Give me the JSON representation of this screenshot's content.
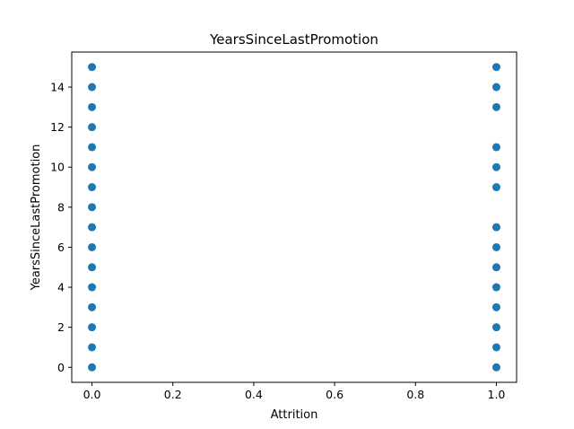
{
  "chart_data": {
    "type": "scatter",
    "title": "YearsSinceLastPromotion",
    "xlabel": "Attrition",
    "ylabel": "YearsSinceLastPromotion",
    "xlim": [
      -0.05,
      1.05
    ],
    "ylim": [
      -0.75,
      15.75
    ],
    "xticks": [
      0.0,
      0.2,
      0.4,
      0.6,
      0.8,
      1.0
    ],
    "xtick_labels": [
      "0.0",
      "0.2",
      "0.4",
      "0.6",
      "0.8",
      "1.0"
    ],
    "yticks": [
      0,
      2,
      4,
      6,
      8,
      10,
      12,
      14
    ],
    "ytick_labels": [
      "0",
      "2",
      "4",
      "6",
      "8",
      "10",
      "12",
      "14"
    ],
    "grid": false,
    "marker_color": "#1f77b4",
    "points": [
      {
        "x": 0,
        "y": 0
      },
      {
        "x": 0,
        "y": 1
      },
      {
        "x": 0,
        "y": 2
      },
      {
        "x": 0,
        "y": 3
      },
      {
        "x": 0,
        "y": 4
      },
      {
        "x": 0,
        "y": 5
      },
      {
        "x": 0,
        "y": 6
      },
      {
        "x": 0,
        "y": 7
      },
      {
        "x": 0,
        "y": 8
      },
      {
        "x": 0,
        "y": 9
      },
      {
        "x": 0,
        "y": 10
      },
      {
        "x": 0,
        "y": 11
      },
      {
        "x": 0,
        "y": 12
      },
      {
        "x": 0,
        "y": 13
      },
      {
        "x": 0,
        "y": 14
      },
      {
        "x": 0,
        "y": 15
      },
      {
        "x": 1,
        "y": 0
      },
      {
        "x": 1,
        "y": 1
      },
      {
        "x": 1,
        "y": 2
      },
      {
        "x": 1,
        "y": 3
      },
      {
        "x": 1,
        "y": 4
      },
      {
        "x": 1,
        "y": 5
      },
      {
        "x": 1,
        "y": 6
      },
      {
        "x": 1,
        "y": 7
      },
      {
        "x": 1,
        "y": 9
      },
      {
        "x": 1,
        "y": 10
      },
      {
        "x": 1,
        "y": 11
      },
      {
        "x": 1,
        "y": 13
      },
      {
        "x": 1,
        "y": 14
      },
      {
        "x": 1,
        "y": 15
      }
    ]
  }
}
